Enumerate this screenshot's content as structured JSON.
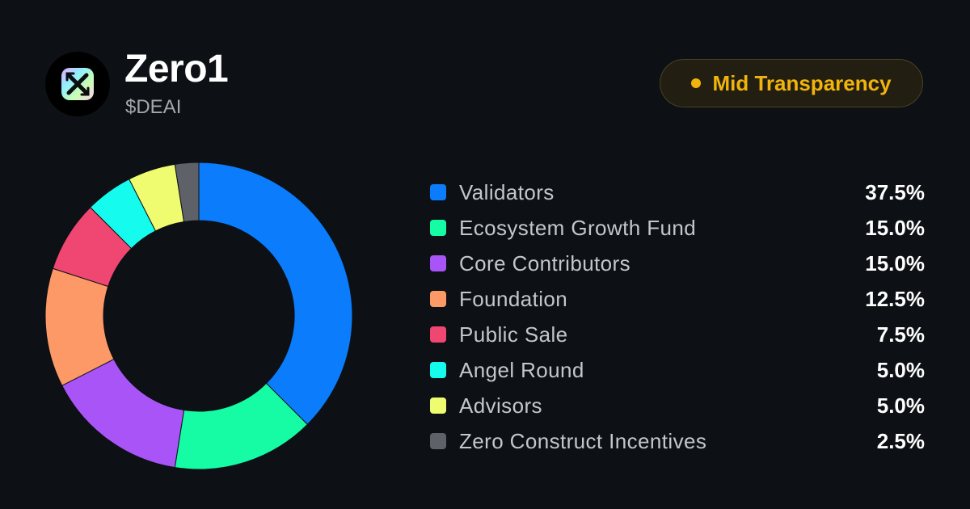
{
  "token": {
    "name": "Zero1",
    "symbol": "$DEAI"
  },
  "badge": {
    "label": "Mid Transparency",
    "color": "#f1b40c"
  },
  "chart_data": {
    "type": "pie",
    "style": "donut",
    "categories": [
      "Validators",
      "Ecosystem Growth Fund",
      "Core Contributors",
      "Foundation",
      "Public Sale",
      "Angel Round",
      "Advisors",
      "Zero Construct Incentives"
    ],
    "values": [
      37.5,
      15.0,
      15.0,
      12.5,
      7.5,
      5.0,
      5.0,
      2.5
    ],
    "value_labels": [
      "37.5%",
      "15.0%",
      "15.0%",
      "12.5%",
      "7.5%",
      "5.0%",
      "5.0%",
      "2.5%"
    ],
    "colors": [
      "#0a7cfc",
      "#15fca5",
      "#a854f7",
      "#fd9966",
      "#f04672",
      "#15fbee",
      "#f0fc6f",
      "#5e6168"
    ],
    "legend_position": "right"
  }
}
